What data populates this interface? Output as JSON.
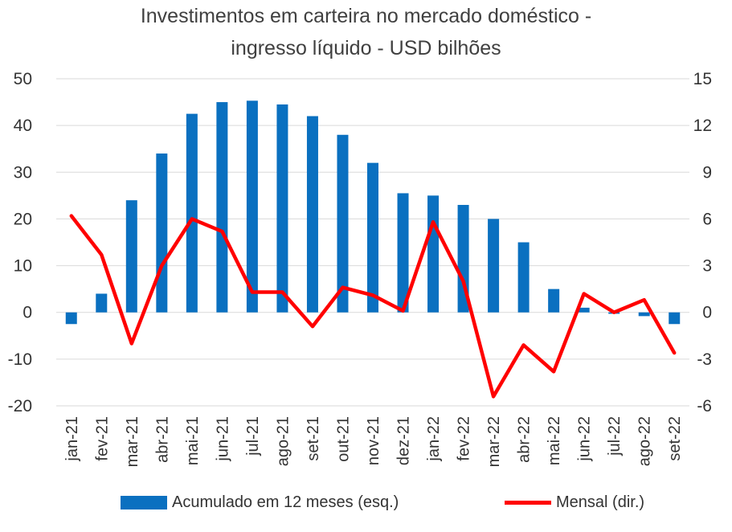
{
  "chart_data": {
    "type": "bar",
    "title_line1": "Investimentos em carteira no mercado doméstico -",
    "title_line2": "ingresso líquido - USD bilhões",
    "categories": [
      "jan-21",
      "fev-21",
      "mar-21",
      "abr-21",
      "mai-21",
      "jun-21",
      "jul-21",
      "ago-21",
      "set-21",
      "out-21",
      "nov-21",
      "dez-21",
      "jan-22",
      "fev-22",
      "mar-22",
      "abr-22",
      "mai-22",
      "jun-22",
      "jul-22",
      "ago-22",
      "set-22"
    ],
    "series": [
      {
        "name": "Acumulado em 12 meses (esq.)",
        "type": "bar",
        "axis": "left",
        "color": "#0a70c0",
        "values": [
          -2.5,
          4,
          24,
          34,
          42.5,
          45,
          45.3,
          44.5,
          42,
          38,
          32,
          25.5,
          25,
          23,
          20,
          15,
          5,
          1,
          -0.3,
          -0.8,
          -2.5
        ]
      },
      {
        "name": "Mensal (dir.)",
        "type": "line",
        "axis": "right",
        "color": "#ff0000",
        "values": [
          6.2,
          3.7,
          -2,
          3,
          6,
          5.2,
          1.3,
          1.3,
          -0.9,
          1.6,
          1.1,
          0.1,
          5.8,
          2,
          -5.4,
          -2.1,
          -3.8,
          1.2,
          0,
          0.8,
          -2.6
        ]
      }
    ],
    "y_left": {
      "min": -20,
      "max": 50,
      "ticks": [
        50,
        40,
        30,
        20,
        10,
        0,
        -10,
        -20
      ]
    },
    "y_right": {
      "min": -6,
      "max": 15,
      "ticks": [
        15,
        12,
        9,
        6,
        3,
        0,
        -3,
        -6
      ]
    },
    "grid": true,
    "legend_position": "bottom"
  }
}
